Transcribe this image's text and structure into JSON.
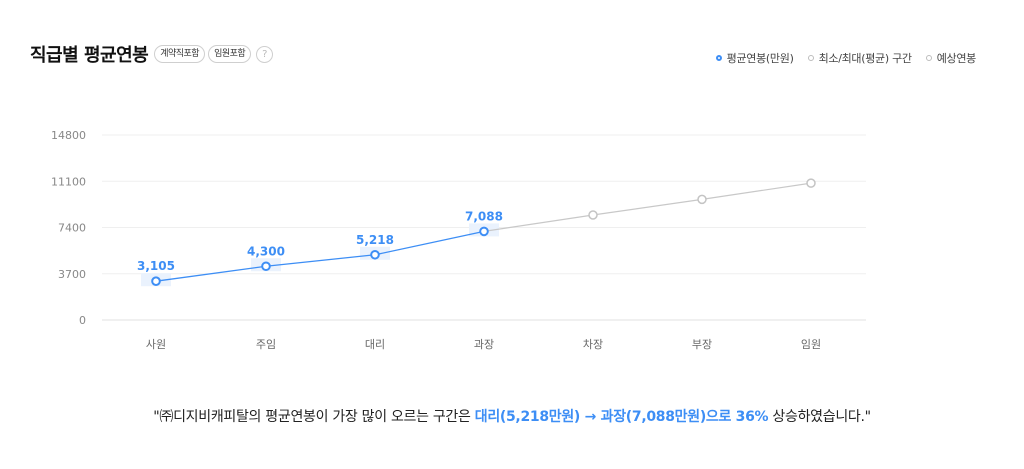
{
  "header": {
    "title": "직급별 평균연봉",
    "tags": [
      "계약직포함",
      "임원포함"
    ],
    "help_icon": "?"
  },
  "legend": [
    {
      "label": "평균연봉(만원)",
      "icon": "circle-outline-blue"
    },
    {
      "label": "최소/최대(평균) 구간",
      "icon": "circle-outline-gray"
    },
    {
      "label": "예상연봉",
      "icon": "circle-outline-gray"
    }
  ],
  "colors": {
    "accent": "#3d8ef5",
    "projection": "#c8c8c8",
    "band": "#eaf2fd",
    "grid": "#efefef",
    "axis_text": "#888888"
  },
  "chart_data": {
    "type": "line",
    "title": "직급별 평균연봉",
    "xlabel": "",
    "ylabel": "",
    "ylim": [
      0,
      14800
    ],
    "yticks": [
      0,
      3700,
      7400,
      11100,
      14800
    ],
    "categories": [
      "사원",
      "주임",
      "대리",
      "과장",
      "차장",
      "부장",
      "임원"
    ],
    "grid": true,
    "legend_position": "top-right",
    "series": [
      {
        "name": "평균연봉(만원)",
        "values": [
          3105,
          4300,
          5218,
          7088,
          null,
          null,
          null
        ],
        "labels": [
          "3,105",
          "4,300",
          "5,218",
          "7,088"
        ],
        "color": "#3d8ef5"
      },
      {
        "name": "예상연봉",
        "values": [
          null,
          null,
          null,
          7088,
          8400,
          9650,
          10950
        ],
        "color": "#c8c8c8"
      }
    ],
    "range_bands": "최소/최대(평균) 구간 shown as light shaded band around each average point"
  },
  "summary": {
    "prefix": "\"㈜디지비캐피탈의 평균연봉이 가장 많이 오르는 구간은 ",
    "highlight": "대리(5,218만원) → 과장(7,088만원)으로 36%",
    "suffix": " 상승하였습니다.\""
  }
}
